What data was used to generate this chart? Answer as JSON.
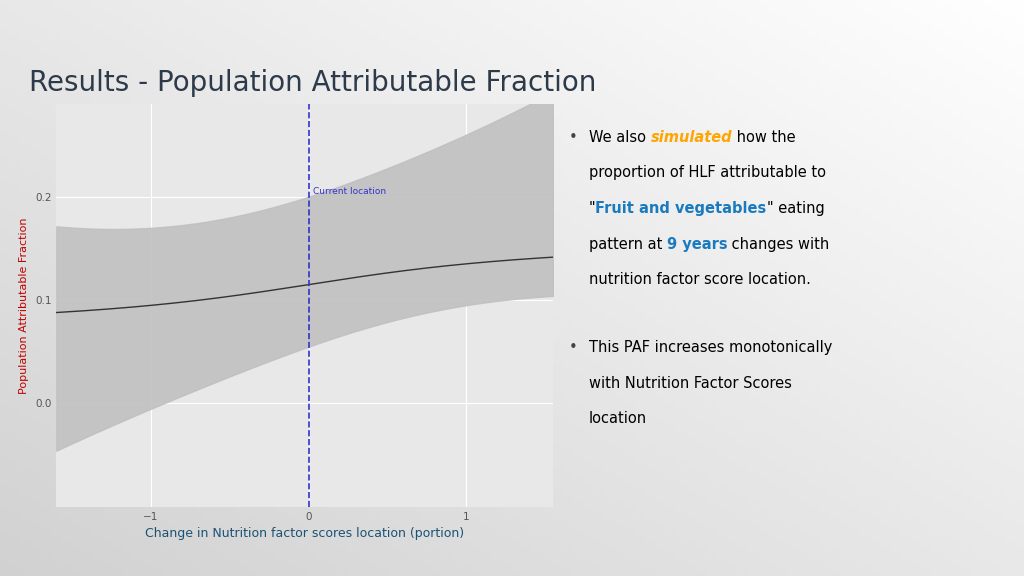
{
  "title": "Results - Population Attributable Fraction",
  "title_fontsize": 20,
  "title_color": "#2d3a4a",
  "bg_top_color": "#d8dde6",
  "bg_bottom_color": "#ffffff",
  "plot_bg_color": "#e8e8e8",
  "ylabel": "Population Attributable Fraction",
  "xlabel": "Change in Nutrition factor scores location (portion)",
  "xlabel_fontsize": 9,
  "ylabel_fontsize": 8,
  "ylabel_color": "#c00000",
  "xlabel_color": "#1a5276",
  "vline_x": 0,
  "vline_label": "Current location",
  "vline_color": "#3333cc",
  "yticks": [
    0.0,
    0.1,
    0.2
  ],
  "xticks": [
    -1,
    0,
    1
  ],
  "xlim": [
    -1.6,
    1.55
  ],
  "ylim": [
    -0.1,
    0.29
  ],
  "curve_color": "#333333",
  "ci_color": "#c0c0c0",
  "ci_alpha": 0.9,
  "grid_color": "#ffffff",
  "sidebar_color": "#1e3258",
  "sidebar2_color": "#5a9fd4"
}
